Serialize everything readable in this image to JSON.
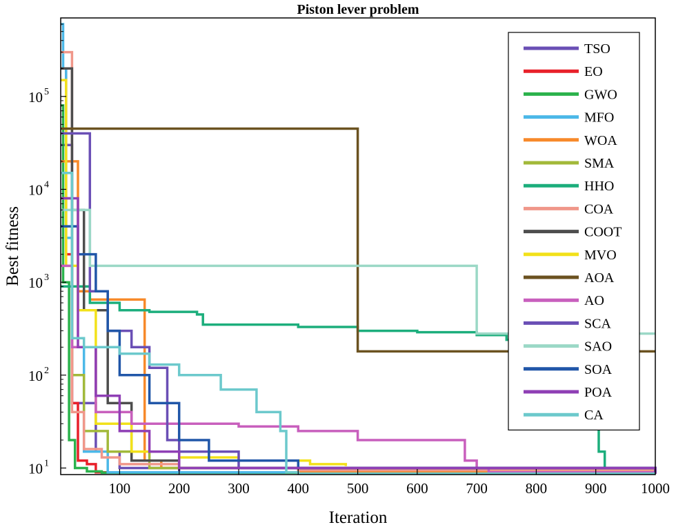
{
  "chart_data": {
    "type": "line",
    "title": "Piston lever problem",
    "xlabel": "Iteration",
    "ylabel": "Best fitness",
    "xlim": [
      1,
      1000
    ],
    "ylim": [
      8.5,
      700000
    ],
    "y_scale": "log",
    "x_ticks": [
      100,
      200,
      300,
      400,
      500,
      600,
      700,
      800,
      900,
      1000
    ],
    "x_tick_labels": [
      "100",
      "200",
      "300",
      "400",
      "500",
      "600",
      "700",
      "800",
      "900",
      "1000"
    ],
    "y_ticks": [
      10,
      100,
      1000,
      10000,
      100000
    ],
    "y_tick_labels": [
      {
        "base": "10",
        "exp": "1"
      },
      {
        "base": "10",
        "exp": "2"
      },
      {
        "base": "10",
        "exp": "3"
      },
      {
        "base": "10",
        "exp": "4"
      },
      {
        "base": "10",
        "exp": "5"
      }
    ],
    "grid": false,
    "legend_position": "top-right",
    "series": [
      {
        "name": "TSO",
        "color": "#6a4fb5",
        "x": [
          1,
          20,
          60,
          100,
          200,
          1000
        ],
        "y": [
          30000,
          50,
          15,
          10,
          9,
          8.7
        ]
      },
      {
        "name": "EO",
        "color": "#e8202a",
        "x": [
          1,
          10,
          20,
          30,
          45,
          60,
          1000
        ],
        "y": [
          200000,
          2000,
          50,
          12,
          11,
          9,
          8.7
        ]
      },
      {
        "name": "GWO",
        "color": "#2bb24c",
        "x": [
          1,
          5,
          15,
          25,
          45,
          70,
          1000
        ],
        "y": [
          80000,
          1000,
          20,
          10,
          9.2,
          8.9,
          8.7
        ]
      },
      {
        "name": "MFO",
        "color": "#4cb8e8",
        "x": [
          1,
          5,
          10,
          20,
          40,
          80,
          1000
        ],
        "y": [
          600000,
          200000,
          3000,
          200,
          15,
          9,
          8.7
        ]
      },
      {
        "name": "WOA",
        "color": "#f7892a",
        "x": [
          1,
          30,
          50,
          138,
          142,
          170,
          400,
          1000
        ],
        "y": [
          20000,
          800,
          650,
          650,
          12,
          10,
          9,
          8.7
        ]
      },
      {
        "name": "SMA",
        "color": "#a2b93a",
        "x": [
          1,
          20,
          40,
          80,
          150,
          1000
        ],
        "y": [
          8000,
          100,
          25,
          15,
          10,
          8.7
        ]
      },
      {
        "name": "HHO",
        "color": "#1cae7c",
        "x": [
          1,
          50,
          100,
          150,
          230,
          240,
          400,
          500,
          600,
          700,
          750,
          800,
          850,
          900,
          905,
          915,
          1000
        ],
        "y": [
          900,
          600,
          500,
          480,
          450,
          350,
          330,
          300,
          290,
          270,
          240,
          240,
          240,
          230,
          15,
          9,
          8.7
        ]
      },
      {
        "name": "COA",
        "color": "#f0978a",
        "x": [
          1,
          20,
          40,
          70,
          100,
          200,
          400,
          1000
        ],
        "y": [
          300000,
          40,
          16,
          13,
          11,
          10,
          9.5,
          8.7
        ]
      },
      {
        "name": "COOT",
        "color": "#4d4d4d",
        "x": [
          1,
          20,
          40,
          80,
          120,
          200,
          1000
        ],
        "y": [
          200000,
          6000,
          500,
          50,
          12,
          10,
          8.7
        ]
      },
      {
        "name": "MVO",
        "color": "#f2e11a",
        "x": [
          1,
          10,
          30,
          60,
          120,
          200,
          300,
          420,
          480
        ],
        "y": [
          150000,
          1500,
          500,
          30,
          15,
          13,
          12,
          11,
          10.5
        ]
      },
      {
        "name": "AOA",
        "color": "#6b5220",
        "x": [
          1,
          500,
          500,
          1000
        ],
        "y": [
          45000,
          45000,
          180,
          180
        ]
      },
      {
        "name": "AO",
        "color": "#c85fbd",
        "x": [
          1,
          20,
          60,
          120,
          200,
          300,
          400,
          500,
          660,
          680,
          700,
          720,
          1000
        ],
        "y": [
          1500,
          200,
          40,
          30,
          30,
          28,
          25,
          20,
          20,
          12,
          10,
          9,
          8.7
        ]
      },
      {
        "name": "SCA",
        "color": "#6a4fb5",
        "x": [
          1,
          50,
          80,
          120,
          150,
          180,
          200,
          300,
          1000
        ],
        "y": [
          40000,
          800,
          300,
          200,
          120,
          20,
          15,
          10,
          8.7
        ]
      },
      {
        "name": "SAO",
        "color": "#9bd8c6",
        "x": [
          1,
          50,
          100,
          699,
          700,
          1000
        ],
        "y": [
          6000,
          1500,
          1500,
          1500,
          280,
          280
        ]
      },
      {
        "name": "SOA",
        "color": "#2056a8",
        "x": [
          1,
          30,
          60,
          80,
          100,
          150,
          200,
          250,
          400,
          1000
        ],
        "y": [
          4000,
          2000,
          800,
          300,
          100,
          50,
          20,
          12,
          10,
          9
        ]
      },
      {
        "name": "POA",
        "color": "#8f3fb5",
        "x": [
          1,
          30,
          60,
          100,
          150,
          200,
          1000
        ],
        "y": [
          8000,
          200,
          60,
          25,
          15,
          10,
          8.7
        ]
      },
      {
        "name": "CA",
        "color": "#6cc9cc",
        "x": [
          1,
          20,
          40,
          100,
          150,
          200,
          270,
          330,
          370,
          380,
          400,
          1000
        ],
        "y": [
          15000,
          250,
          200,
          170,
          130,
          100,
          70,
          40,
          25,
          9,
          8.7,
          8.7
        ]
      }
    ]
  }
}
